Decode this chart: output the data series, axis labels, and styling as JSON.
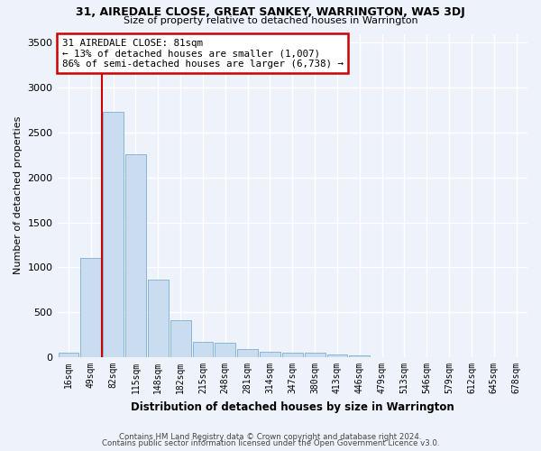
{
  "title1": "31, AIREDALE CLOSE, GREAT SANKEY, WARRINGTON, WA5 3DJ",
  "title2": "Size of property relative to detached houses in Warrington",
  "xlabel": "Distribution of detached houses by size in Warrington",
  "ylabel": "Number of detached properties",
  "bar_color": "#c9dcf0",
  "bar_edge_color": "#7aafd4",
  "categories": [
    "16sqm",
    "49sqm",
    "82sqm",
    "115sqm",
    "148sqm",
    "182sqm",
    "215sqm",
    "248sqm",
    "281sqm",
    "314sqm",
    "347sqm",
    "380sqm",
    "413sqm",
    "446sqm",
    "479sqm",
    "513sqm",
    "546sqm",
    "579sqm",
    "612sqm",
    "645sqm",
    "678sqm"
  ],
  "values": [
    55,
    1100,
    2730,
    2260,
    860,
    415,
    175,
    165,
    90,
    65,
    50,
    50,
    30,
    25,
    5,
    5,
    5,
    5,
    5,
    5,
    5
  ],
  "ylim": [
    0,
    3600
  ],
  "yticks": [
    0,
    500,
    1000,
    1500,
    2000,
    2500,
    3000,
    3500
  ],
  "annotation_text": "31 AIREDALE CLOSE: 81sqm\n← 13% of detached houses are smaller (1,007)\n86% of semi-detached houses are larger (6,738) →",
  "vline_x_index": 2,
  "annotation_box_facecolor": "#ffffff",
  "annotation_box_edgecolor": "#cc0000",
  "footnote1": "Contains HM Land Registry data © Crown copyright and database right 2024.",
  "footnote2": "Contains public sector information licensed under the Open Government Licence v3.0.",
  "background_color": "#eef2fa",
  "grid_color": "#ffffff",
  "vline_color": "#cc0000"
}
